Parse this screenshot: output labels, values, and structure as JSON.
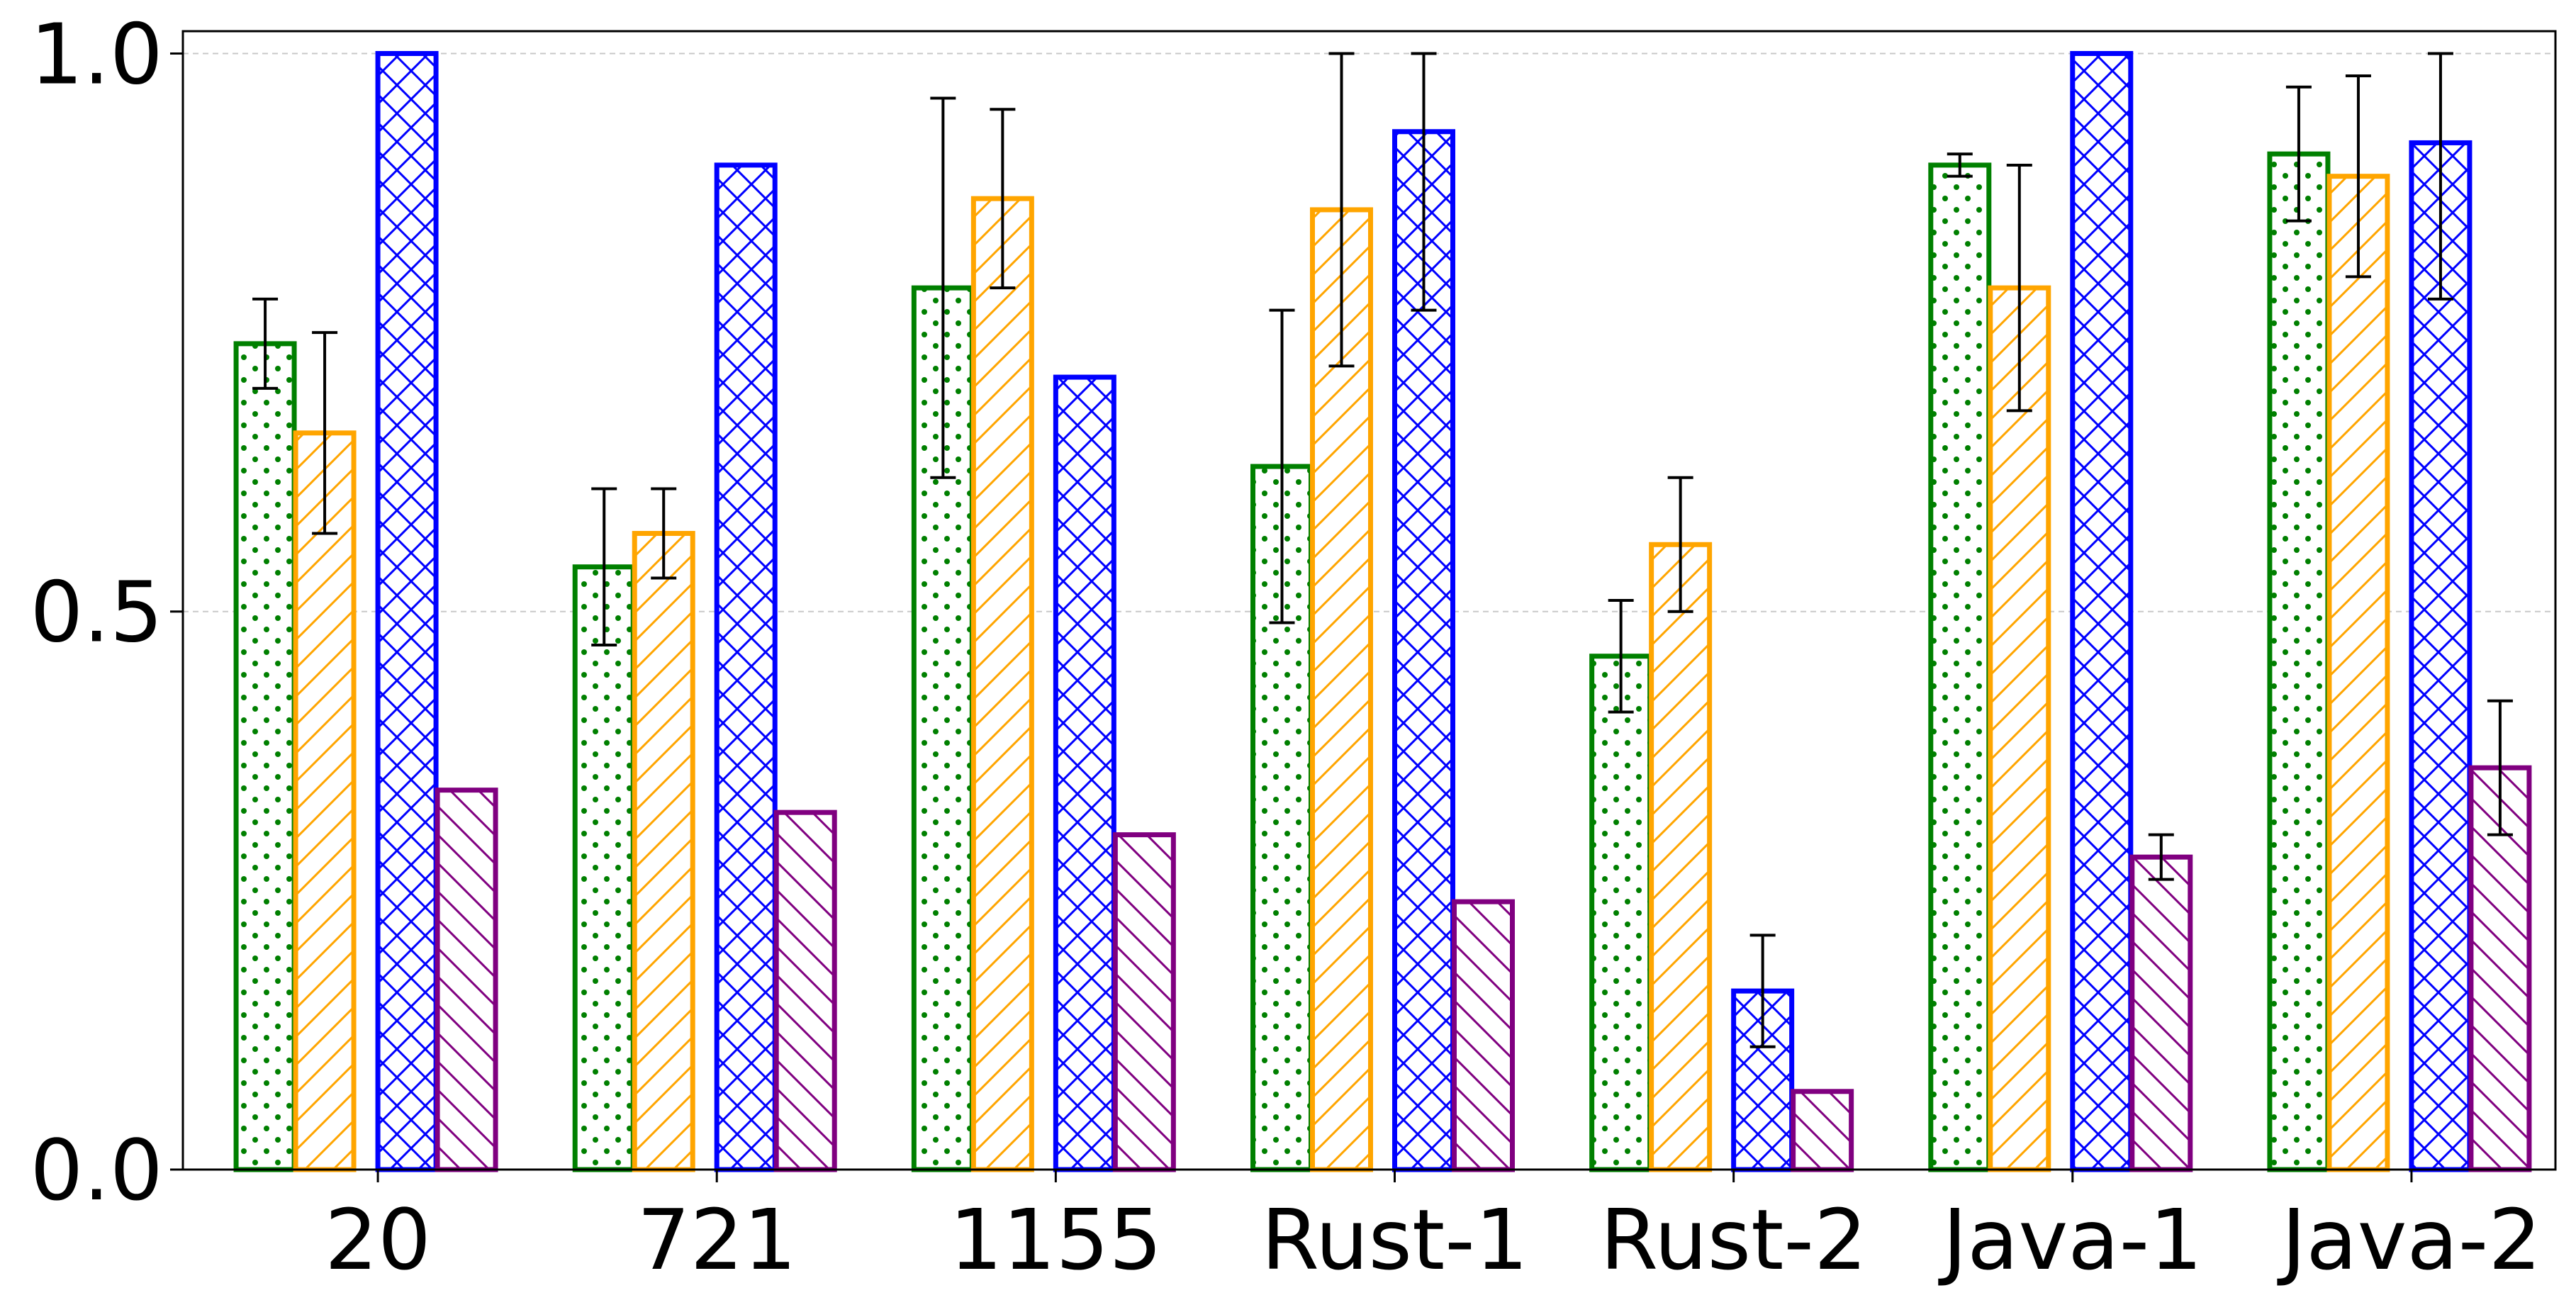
{
  "chart_data": {
    "type": "bar",
    "categories": [
      "20",
      "721",
      "1155",
      "Rust-1",
      "Rust-2",
      "Java-1",
      "Java-2"
    ],
    "ylim": [
      0,
      1.02
    ],
    "yticks": [
      0.0,
      0.5,
      1.0
    ],
    "ytick_labels": [
      "0.0",
      "0.5",
      "1.0"
    ],
    "grid": "y dashed",
    "legend": "none",
    "series": [
      {
        "color": "#008000",
        "hatch": "dots",
        "values": [
          0.74,
          0.54,
          0.79,
          0.63,
          0.46,
          0.9,
          0.91
        ],
        "err_low": [
          0.7,
          0.47,
          0.62,
          0.49,
          0.41,
          0.89,
          0.85
        ],
        "err_high": [
          0.78,
          0.61,
          0.96,
          0.77,
          0.51,
          0.91,
          0.97
        ]
      },
      {
        "color": "#FFA500",
        "hatch": "forward-slash",
        "values": [
          0.66,
          0.57,
          0.87,
          0.86,
          0.56,
          0.79,
          0.89
        ],
        "err_low": [
          0.57,
          0.53,
          0.79,
          0.72,
          0.5,
          0.68,
          0.8
        ],
        "err_high": [
          0.75,
          0.61,
          0.95,
          1.0,
          0.62,
          0.9,
          0.98
        ]
      },
      {
        "color": "#0000FF",
        "hatch": "crosshatch",
        "values": [
          1.0,
          0.9,
          0.71,
          0.93,
          0.16,
          1.0,
          0.92
        ],
        "err_low": [
          null,
          null,
          null,
          0.77,
          0.11,
          null,
          0.78
        ],
        "err_high": [
          null,
          null,
          null,
          1.0,
          0.21,
          null,
          1.0
        ]
      },
      {
        "color": "#800080",
        "hatch": "back-slash",
        "values": [
          0.34,
          0.32,
          0.3,
          0.24,
          0.07,
          0.28,
          0.36
        ],
        "err_low": [
          null,
          null,
          null,
          null,
          null,
          0.26,
          0.3
        ],
        "err_high": [
          null,
          null,
          null,
          null,
          null,
          0.3,
          0.42
        ]
      }
    ]
  }
}
